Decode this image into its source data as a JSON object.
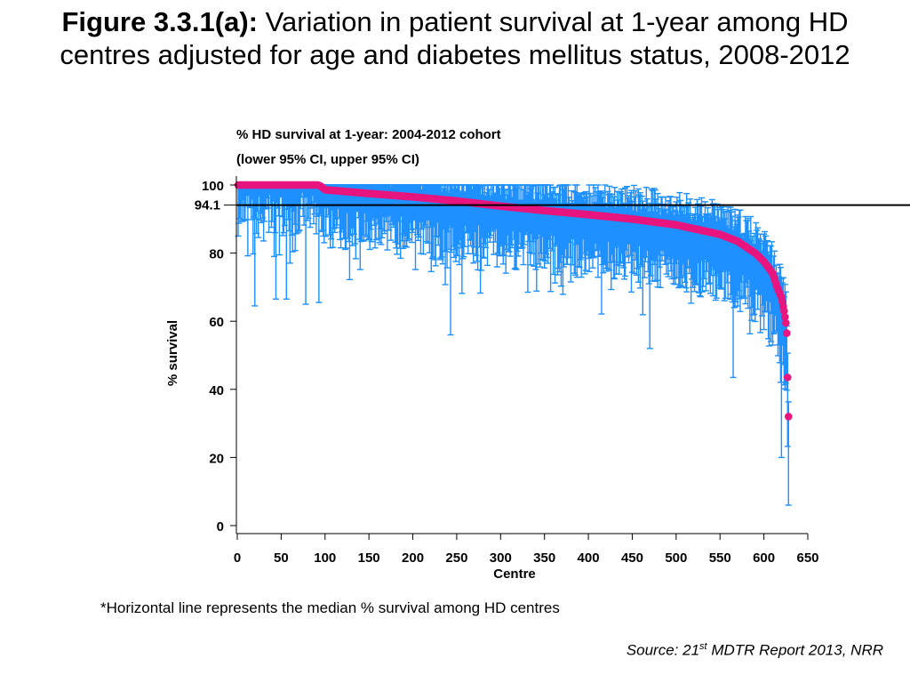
{
  "title": {
    "lead": "Figure 3.3.1(a):",
    "text": "Variation in patient survival at 1-year among HD centres adjusted for age and diabetes mellitus status, 2008-2012"
  },
  "footnote": "*Horizontal line represents the median % survival among HD centres",
  "source": {
    "prefix": "Source: 21",
    "sup": "st",
    "suffix": " MDTR Report 2013, NRR"
  },
  "colors": {
    "point": "#e8157f",
    "ci": "#1e90ff",
    "median_line": "#000000",
    "axis": "#000000"
  },
  "chart_data": {
    "type": "scatter",
    "title": "% HD survival at 1-year: 2004-2012 cohort",
    "subtitle": "(lower 95% CI, upper 95% CI)",
    "xlabel": "Centre",
    "ylabel": "% survival",
    "xlim": [
      0,
      650
    ],
    "ylim": [
      0,
      100
    ],
    "xticks": [
      0,
      50,
      100,
      150,
      200,
      250,
      300,
      350,
      400,
      450,
      500,
      550,
      600,
      650
    ],
    "yticks": [
      0,
      20,
      40,
      60,
      80,
      100
    ],
    "reference_line": {
      "value": 94.1,
      "label": "94.1"
    },
    "n_centres": 628,
    "series": [
      {
        "x": [
          10,
          30,
          50,
          70,
          92,
          96,
          100,
          150,
          200,
          250,
          300,
          350,
          400,
          450,
          500,
          550,
          570,
          590,
          600,
          610,
          615,
          620,
          623,
          625,
          626,
          627,
          628
        ],
        "y": [
          100,
          100,
          100,
          100,
          100,
          99.5,
          98.6,
          97.5,
          96.5,
          95.3,
          93.8,
          92.5,
          91.3,
          90.0,
          88.3,
          85.5,
          83.5,
          80.0,
          77.5,
          74.0,
          70.0,
          67.0,
          63.0,
          59.5,
          56.5,
          43.5,
          32.0
        ]
      }
    ],
    "ci_outliers": [
      {
        "x": 20,
        "lower": 64.5
      },
      {
        "x": 44,
        "lower": 66.5
      },
      {
        "x": 56,
        "lower": 66.5
      },
      {
        "x": 78,
        "lower": 65.0
      },
      {
        "x": 93,
        "lower": 65.5
      },
      {
        "x": 243,
        "lower": 56.0
      },
      {
        "x": 470,
        "lower": 52.0
      },
      {
        "x": 565,
        "lower": 43.5
      },
      {
        "x": 620,
        "lower": 20.0
      },
      {
        "x": 628,
        "lower": 6.0
      }
    ]
  }
}
